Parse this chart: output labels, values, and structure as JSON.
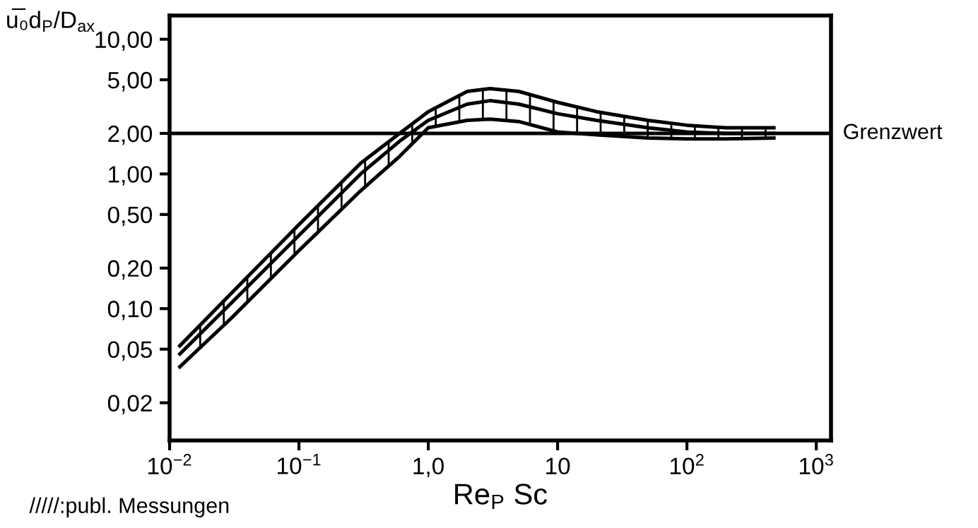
{
  "chart_data": {
    "type": "line",
    "xlabel": "Re$_{P}$ Sc",
    "ylabel": "u̅₀d$_{P}$/D$_{ax}$",
    "log": "xy",
    "xlim": [
      0.01,
      1300
    ],
    "ylim": [
      0.0105,
      15
    ],
    "xticks": [
      {
        "value": 0.01,
        "label": "10$^{−2}$"
      },
      {
        "value": 0.1,
        "label": "10$^{−1}$"
      },
      {
        "value": 1,
        "label": "1,0"
      },
      {
        "value": 10,
        "label": "10"
      },
      {
        "value": 100,
        "label": "10$^{2}$"
      },
      {
        "value": 1000,
        "label": "10$^{3}$"
      }
    ],
    "yticks": [
      {
        "value": 10,
        "label": "10,00"
      },
      {
        "value": 5,
        "label": "5,00"
      },
      {
        "value": 2,
        "label": "2,00"
      },
      {
        "value": 1,
        "label": "1,00"
      },
      {
        "value": 0.5,
        "label": "0,50"
      },
      {
        "value": 0.2,
        "label": "0,20"
      },
      {
        "value": 0.1,
        "label": "0,10"
      },
      {
        "value": 0.05,
        "label": "0,05"
      },
      {
        "value": 0.02,
        "label": "0,02"
      }
    ],
    "grid": false,
    "marker": "none",
    "line_style": "solid",
    "x": [
      0.012,
      0.03,
      0.1,
      0.3,
      0.6,
      1,
      2,
      3,
      5,
      10,
      20,
      50,
      100,
      200,
      470
    ],
    "series": [
      {
        "color": "#000000",
        "values": [
          0.046,
          0.11,
          0.35,
          1.0,
          1.75,
          2.5,
          3.3,
          3.5,
          3.3,
          2.8,
          2.5,
          2.2,
          2.05,
          2.0,
          2.0
        ],
        "lower": [
          0.037,
          0.085,
          0.27,
          0.75,
          1.35,
          2.2,
          2.5,
          2.55,
          2.45,
          2.05,
          1.95,
          1.85,
          1.82,
          1.82,
          1.85
        ],
        "upper": [
          0.053,
          0.13,
          0.42,
          1.2,
          2.0,
          2.9,
          4.1,
          4.3,
          4.1,
          3.4,
          2.9,
          2.5,
          2.3,
          2.2,
          2.2
        ]
      },
      {
        "color": "#000000",
        "values": [
          0.037,
          0.085,
          0.27,
          0.75,
          1.35,
          2.2,
          2.5,
          2.55,
          2.45,
          2.05,
          1.95,
          1.85,
          1.82,
          1.82,
          1.85
        ]
      },
      {
        "color": "#000000",
        "values": [
          0.053,
          0.13,
          0.42,
          1.2,
          2.0,
          2.9,
          4.1,
          4.3,
          4.1,
          3.4,
          2.9,
          2.5,
          2.3,
          2.2,
          2.2
        ]
      }
    ],
    "ref_lines": [
      {
        "axis": "y",
        "value": 2,
        "label": "Grenzwert",
        "color": "#000000",
        "line_style": "solid"
      }
    ],
    "annotations": [
      "/////:publ. Messungen"
    ]
  }
}
